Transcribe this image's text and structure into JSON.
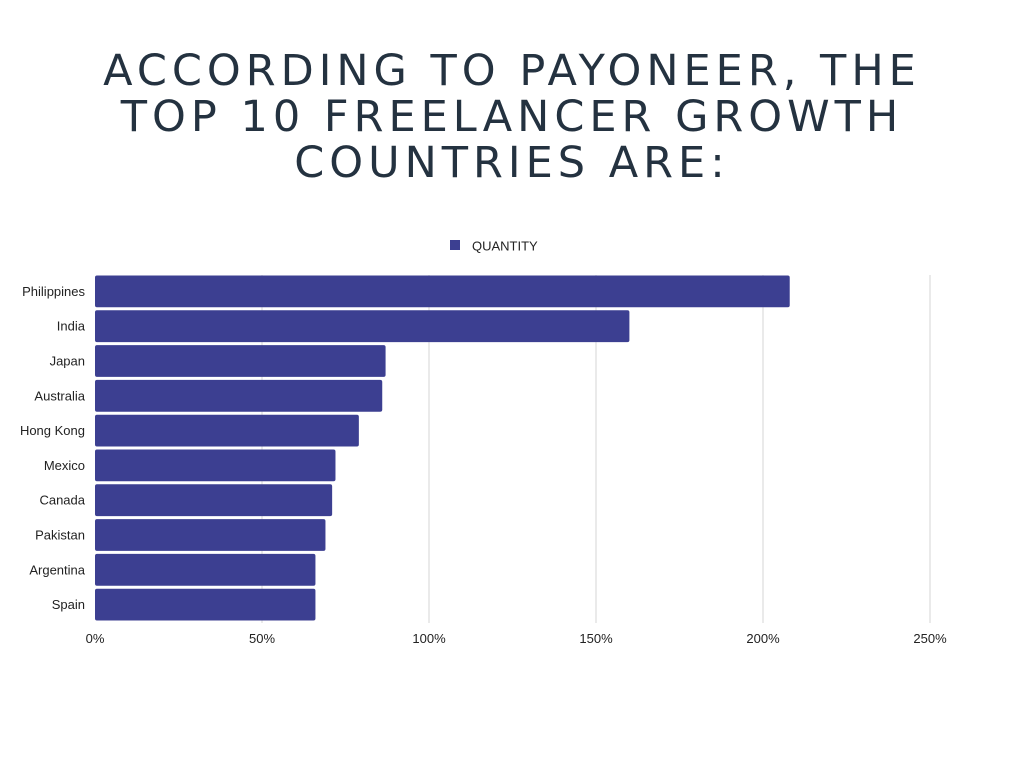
{
  "title_lines": [
    "ACCORDING TO PAYONEER, THE",
    "TOP 10 FREELANCER GROWTH",
    "COUNTRIES ARE:"
  ],
  "colors": {
    "bar": "#3c3f91",
    "grid": "#d6d6d6",
    "title": "#243240"
  },
  "chart_data": {
    "type": "bar",
    "orientation": "horizontal",
    "title": "ACCORDING TO PAYONEER, THE TOP 10 FREELANCER GROWTH COUNTRIES ARE:",
    "categories": [
      "Philippines",
      "India",
      "Japan",
      "Australia",
      "Hong Kong",
      "Mexico",
      "Canada",
      "Pakistan",
      "Argentina",
      "Spain"
    ],
    "series": [
      {
        "name": "QUANTITY",
        "values": [
          208,
          160,
          87,
          86,
          79,
          72,
          71,
          69,
          66,
          66
        ]
      }
    ],
    "unit": "%",
    "xlim": [
      0,
      250
    ],
    "xticks": [
      0,
      50,
      100,
      150,
      200,
      250
    ],
    "xtick_labels": [
      "0%",
      "50%",
      "100%",
      "150%",
      "200%",
      "250%"
    ],
    "xlabel": "",
    "ylabel": "",
    "legend": "top-center",
    "grid": true
  }
}
